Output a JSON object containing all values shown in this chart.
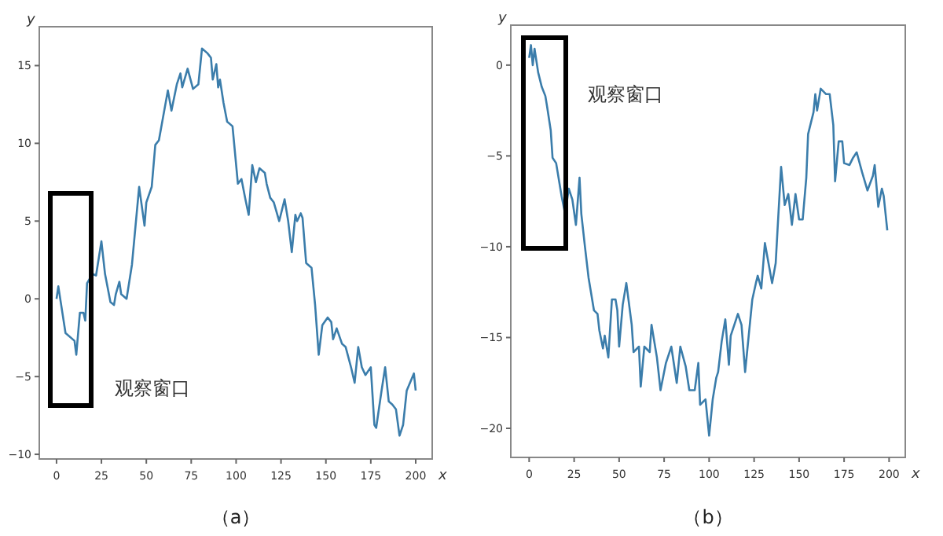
{
  "chart_data": [
    {
      "type": "line",
      "title": "（a）",
      "xlabel": "x",
      "ylabel": "y",
      "color": "#3b7dab",
      "xlim": [
        -9.6,
        209.2
      ],
      "ylim": [
        -10.3,
        17.5
      ],
      "xticks": [
        0,
        25,
        50,
        75,
        100,
        125,
        150,
        175,
        200
      ],
      "yticks": [
        -10,
        -5,
        0,
        5,
        10,
        15
      ],
      "grid": false,
      "marker": "none",
      "x": [
        0,
        1,
        3,
        5,
        10,
        11,
        13,
        15,
        16,
        17,
        20,
        22,
        25,
        27,
        30,
        32,
        33,
        35,
        36,
        39,
        42,
        46,
        49,
        50,
        53,
        55,
        57,
        62,
        64,
        67,
        69,
        70,
        73,
        76,
        79,
        81,
        84,
        86,
        87,
        89,
        90,
        91,
        93,
        95,
        98,
        101,
        103,
        105,
        107,
        109,
        111,
        113,
        116,
        117,
        119,
        121,
        124,
        127,
        129,
        131,
        133,
        134,
        136,
        137,
        139,
        142,
        144,
        146,
        148,
        151,
        153,
        154,
        156,
        159,
        161,
        164,
        166,
        168,
        170,
        172,
        175,
        177,
        178,
        181,
        183,
        185,
        187,
        189,
        191,
        193,
        195,
        199,
        200
      ],
      "values": [
        0,
        0.8,
        -0.7,
        -2.2,
        -2.7,
        -3.6,
        -0.9,
        -0.9,
        -1.4,
        1.0,
        1.6,
        1.5,
        3.7,
        1.6,
        -0.2,
        -0.4,
        0.3,
        1.1,
        0.3,
        0,
        2.2,
        7.2,
        4.7,
        6.2,
        7.2,
        9.9,
        10.2,
        13.4,
        12.1,
        13.8,
        14.5,
        13.6,
        14.8,
        13.5,
        13.8,
        16.1,
        15.8,
        15.5,
        14.1,
        15.1,
        13.6,
        14.1,
        12.6,
        11.4,
        11.1,
        7.4,
        7.7,
        6.5,
        5.4,
        8.6,
        7.5,
        8.4,
        8.1,
        7.4,
        6.5,
        6.2,
        5.0,
        6.4,
        5.0,
        3.0,
        5.4,
        5.0,
        5.5,
        5.2,
        2.3,
        2.0,
        -0.4,
        -3.6,
        -1.7,
        -1.2,
        -1.5,
        -2.6,
        -1.9,
        -2.9,
        -3.1,
        -4.4,
        -5.4,
        -3.1,
        -4.4,
        -4.9,
        -4.4,
        -8.1,
        -8.3,
        -5.9,
        -4.4,
        -6.6,
        -6.8,
        -7.1,
        -8.8,
        -8.1,
        -5.9,
        -4.8,
        -5.9
      ],
      "annotations": [
        "观察窗口"
      ]
    },
    {
      "type": "line",
      "title": "（b）",
      "xlabel": "x",
      "ylabel": "y",
      "color": "#3b7dab",
      "xlim": [
        -10.2,
        209
      ],
      "ylim": [
        -21.6,
        2.2
      ],
      "xticks": [
        0,
        25,
        50,
        75,
        100,
        125,
        150,
        175,
        200
      ],
      "yticks": [
        -20,
        -15,
        -10,
        -5,
        0
      ],
      "grid": false,
      "marker": "none",
      "x": [
        0,
        1,
        2,
        3,
        5,
        7,
        9,
        10,
        12,
        13,
        15,
        18,
        20,
        22,
        24,
        26,
        28,
        29,
        31,
        33,
        34,
        36,
        38,
        39,
        41,
        42,
        44,
        46,
        48,
        49,
        50,
        52,
        54,
        57,
        58,
        61,
        62,
        64,
        67,
        68,
        71,
        73,
        76,
        79,
        82,
        84,
        87,
        89,
        92,
        94,
        95,
        98,
        100,
        102,
        104,
        105,
        107,
        109,
        111,
        112,
        114,
        116,
        118,
        120,
        122,
        124,
        126,
        127,
        129,
        131,
        133,
        135,
        137,
        138,
        140,
        142,
        144,
        146,
        148,
        150,
        152,
        154,
        155,
        158,
        159,
        160,
        162,
        165,
        167,
        169,
        170,
        172,
        174,
        175,
        178,
        180,
        182,
        185,
        188,
        191,
        192,
        194,
        196,
        197,
        199
      ],
      "values": [
        0.4,
        1.1,
        0,
        0.9,
        -0.4,
        -1.2,
        -1.7,
        -2.3,
        -3.6,
        -5.1,
        -5.4,
        -7.2,
        -8.2,
        -6.8,
        -7.4,
        -8.8,
        -6.2,
        -8.2,
        -10,
        -11.7,
        -12.3,
        -13.5,
        -13.7,
        -14.6,
        -15.6,
        -14.9,
        -16.1,
        -12.9,
        -12.9,
        -13.5,
        -15.5,
        -13.2,
        -12.0,
        -14.3,
        -15.8,
        -15.5,
        -17.7,
        -15.5,
        -15.8,
        -14.3,
        -16.1,
        -17.9,
        -16.4,
        -15.5,
        -17.5,
        -15.5,
        -16.6,
        -17.9,
        -17.9,
        -16.4,
        -18.7,
        -18.4,
        -20.4,
        -18.4,
        -17.2,
        -16.9,
        -15.2,
        -14.0,
        -16.5,
        -14.9,
        -14.3,
        -13.7,
        -14.3,
        -16.9,
        -14.9,
        -12.9,
        -12.0,
        -11.6,
        -12.3,
        -9.8,
        -10.9,
        -12.0,
        -10.9,
        -9.1,
        -5.6,
        -7.7,
        -7.1,
        -8.8,
        -7.1,
        -8.5,
        -8.5,
        -6.2,
        -3.8,
        -2.6,
        -1.6,
        -2.5,
        -1.3,
        -1.6,
        -1.6,
        -3.3,
        -6.4,
        -4.2,
        -4.2,
        -5.4,
        -5.5,
        -5.1,
        -4.8,
        -5.9,
        -6.9,
        -6.1,
        -5.5,
        -7.8,
        -6.8,
        -7.2,
        -9.1
      ],
      "annotations": [
        "观察窗口"
      ]
    }
  ]
}
